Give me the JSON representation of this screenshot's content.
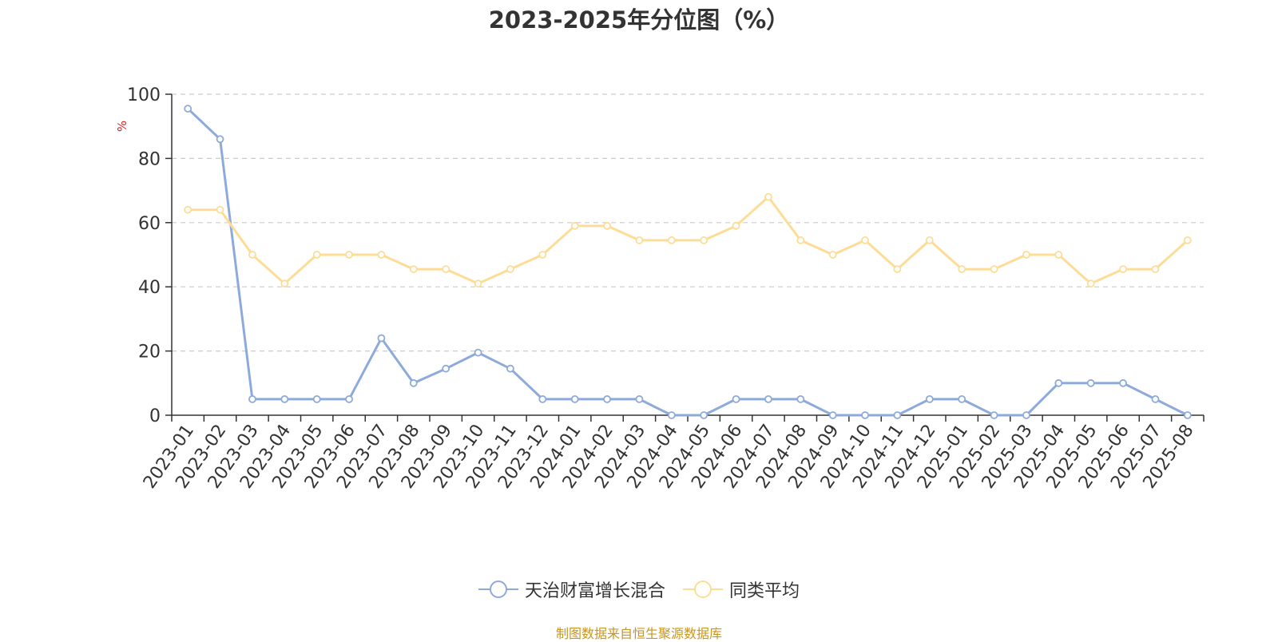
{
  "chart_data": {
    "type": "line",
    "title": "2023-2025年分位图（%）",
    "ylabel": "%",
    "xlabel": "",
    "ylim": [
      0,
      100
    ],
    "yticks": [
      0,
      20,
      40,
      60,
      80,
      100
    ],
    "grid": true,
    "legend_position": "bottom-center",
    "categories": [
      "2023-01",
      "2023-02",
      "2023-03",
      "2023-04",
      "2023-05",
      "2023-06",
      "2023-07",
      "2023-08",
      "2023-09",
      "2023-10",
      "2023-11",
      "2023-12",
      "2024-01",
      "2024-02",
      "2024-03",
      "2024-04",
      "2024-05",
      "2024-06",
      "2024-07",
      "2024-08",
      "2024-09",
      "2024-10",
      "2024-11",
      "2024-12",
      "2025-01",
      "2025-02",
      "2025-03",
      "2025-04",
      "2025-05",
      "2025-06",
      "2025-07",
      "2025-08"
    ],
    "series": [
      {
        "name": "天治财富增长混合",
        "color": "#8eaadb",
        "values": [
          95.5,
          86,
          5,
          5,
          5,
          5,
          24,
          10,
          14.5,
          19.5,
          14.5,
          5,
          5,
          5,
          5,
          0,
          0,
          5,
          5,
          5,
          0,
          0,
          0,
          5,
          5,
          0,
          0,
          10,
          10,
          10,
          5,
          0
        ]
      },
      {
        "name": "同类平均",
        "color": "#fddc96",
        "values": [
          64,
          64,
          50,
          41,
          50,
          50,
          50,
          45.5,
          45.5,
          41,
          45.5,
          50,
          59,
          59,
          54.5,
          54.5,
          54.5,
          59,
          68,
          54.5,
          50,
          54.5,
          45.5,
          54.5,
          45.5,
          45.5,
          50,
          50,
          41,
          45.5,
          45.5,
          54.5
        ]
      }
    ],
    "source_note": "制图数据来自恒生聚源数据库"
  },
  "colors": {
    "title": "#333333",
    "axis": "#333333",
    "grid": "#cccccc",
    "ylabel": "#e02020",
    "source": "#c8961e"
  }
}
